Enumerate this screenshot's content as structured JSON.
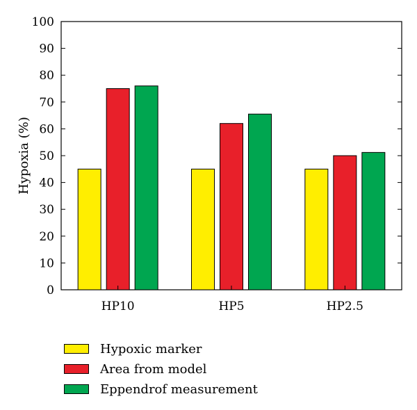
{
  "chart_data": {
    "type": "bar",
    "title": "",
    "xlabel": "",
    "ylabel": "Hypoxia (%)",
    "ylim": [
      0,
      100
    ],
    "yticks": [
      0,
      10,
      20,
      30,
      40,
      50,
      60,
      70,
      80,
      90,
      100
    ],
    "categories": [
      "HP10",
      "HP5",
      "HP2.5"
    ],
    "series": [
      {
        "name": "Hypoxic marker",
        "color": "#ffee00",
        "values": [
          45,
          45,
          45
        ]
      },
      {
        "name": "Area from model",
        "color": "#e8202a",
        "values": [
          75,
          62,
          50
        ]
      },
      {
        "name": "Eppendrof measurement",
        "color": "#00a650",
        "values": [
          76,
          65.5,
          51.2
        ]
      }
    ],
    "legend_position": "bottom-left",
    "grid": false
  }
}
